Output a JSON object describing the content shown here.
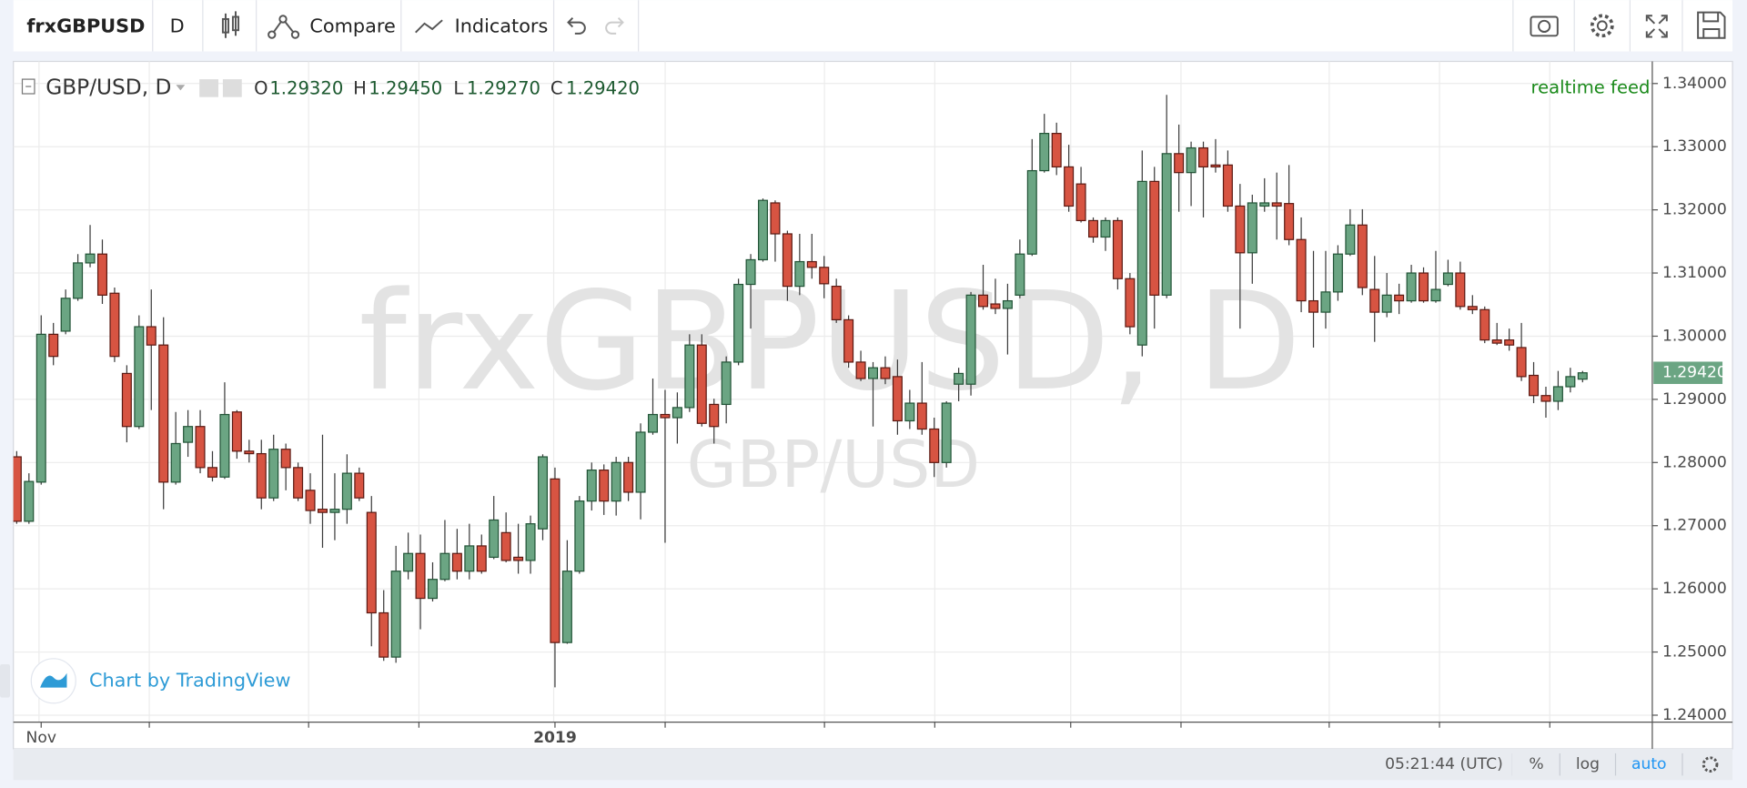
{
  "toolbar": {
    "symbol": "frxGBPUSD",
    "interval": "D",
    "compare": "Compare",
    "indicators": "Indicators"
  },
  "legend": {
    "title": "GBP/USD, D",
    "o_label": "O",
    "open": "1.29320",
    "h_label": "H",
    "high": "1.29450",
    "l_label": "L",
    "low": "1.29270",
    "c_label": "C",
    "close": "1.29420",
    "feed": "realtime feed"
  },
  "watermark": {
    "main": "frxGBPUSD, D",
    "sub": "GBP/USD"
  },
  "attribution": "Chart by TradingView",
  "footer": {
    "time": "05:21:44 (UTC)",
    "percent": "%",
    "log": "log",
    "auto": "auto"
  },
  "chart_data": {
    "type": "candlestick",
    "categories": [
      null,
      null,
      "Nov",
      null,
      null,
      null,
      null,
      null,
      null,
      null,
      null,
      null,
      null,
      null,
      null,
      null,
      null,
      null,
      null,
      null,
      null,
      null,
      null,
      null,
      null,
      null,
      null,
      null,
      null,
      null,
      null,
      null,
      null,
      null,
      null,
      null,
      null,
      null,
      null,
      null,
      null,
      null,
      null,
      null,
      "2019",
      null,
      null,
      null,
      null,
      null,
      null,
      null,
      null,
      null,
      null,
      null,
      null,
      null,
      null,
      null,
      null,
      null,
      null,
      null,
      null,
      null,
      null,
      null,
      null,
      null,
      null,
      null,
      null,
      null,
      null,
      null,
      null,
      null,
      null,
      null,
      null,
      null,
      null,
      null,
      null,
      null,
      null,
      null,
      null,
      null,
      null,
      null,
      null,
      null,
      null,
      null,
      null,
      null,
      null,
      null,
      null,
      null,
      null,
      null,
      null,
      null,
      null,
      null,
      null,
      null,
      null,
      null,
      null,
      null,
      null,
      null,
      null,
      null,
      null,
      null,
      null,
      null,
      null,
      null,
      null,
      null,
      null,
      null,
      null
    ],
    "open": [
      1.2809,
      1.2707,
      1.2769,
      1.3003,
      1.3008,
      1.306,
      1.3116,
      1.313,
      1.3068,
      1.2941,
      1.2857,
      1.3015,
      1.2986,
      1.2769,
      1.2832,
      1.2857,
      1.2792,
      1.2777,
      1.288,
      1.2818,
      1.2814,
      1.2744,
      1.2821,
      1.2792,
      1.2756,
      1.2726,
      1.2721,
      1.2726,
      1.2783,
      1.2721,
      1.2562,
      1.2492,
      1.2628,
      1.2656,
      1.2585,
      1.2615,
      1.2656,
      1.2628,
      1.2668,
      1.265,
      1.2689,
      1.265,
      1.2645,
      1.2695,
      1.2774,
      1.2515,
      1.2628,
      1.2739,
      1.2788,
      1.2739,
      1.28,
      1.2753,
      1.2848,
      1.2876,
      1.2871,
      1.2887,
      1.2986,
      1.2892,
      1.2892,
      1.2959,
      1.3082,
      1.3121,
      1.3211,
      1.3162,
      1.3079,
      1.3118,
      1.3109,
      1.3079,
      1.3026,
      1.2959,
      1.2933,
      1.295,
      1.2936,
      1.2866,
      1.2894,
      1.2853,
      1.28,
      1.2924,
      1.2924,
      1.3065,
      1.3051,
      1.3044,
      1.3065,
      1.313,
      1.3262,
      1.3321,
      1.3268,
      1.3241,
      1.3183,
      1.3157,
      1.3183,
      1.3091,
      1.2986,
      1.3245,
      1.3065,
      1.3289,
      1.3259,
      1.3298,
      1.3271,
      1.3271,
      1.3206,
      1.3132,
      1.3206,
      1.3211,
      1.321,
      1.3153,
      1.3056,
      1.3038,
      1.307,
      1.313,
      1.3176,
      1.3074,
      1.3038,
      1.3065,
      1.3056,
      1.31,
      1.3056,
      1.3082,
      1.31,
      1.3047,
      1.3042,
      1.2994,
      1.2994,
      1.2982,
      1.2938,
      1.2906,
      1.2897,
      1.292,
      1.2932
    ],
    "high": [
      1.2818,
      1.2783,
      1.3033,
      1.3021,
      1.3074,
      1.313,
      1.3176,
      1.3153,
      1.3077,
      1.2954,
      1.3033,
      1.3074,
      1.303,
      1.288,
      1.2883,
      1.2883,
      1.2818,
      1.2927,
      1.2883,
      1.2836,
      1.2836,
      1.2844,
      1.283,
      1.28,
      1.2783,
      1.2844,
      1.2783,
      1.2813,
      1.2792,
      1.2747,
      1.2598,
      1.2668,
      1.2689,
      1.2686,
      1.2642,
      1.2709,
      1.2695,
      1.2703,
      1.2686,
      1.2747,
      1.2721,
      1.2703,
      1.2716,
      1.2813,
      1.2792,
      1.2677,
      1.2747,
      1.28,
      1.2797,
      1.2809,
      1.2809,
      1.2862,
      1.2933,
      1.2915,
      1.2911,
      1.3003,
      1.3003,
      1.2901,
      1.2968,
      1.3091,
      1.313,
      1.3218,
      1.3215,
      1.3167,
      1.3162,
      1.3162,
      1.3127,
      1.3091,
      1.3033,
      1.2977,
      1.2959,
      1.2968,
      1.2963,
      1.2915,
      1.2959,
      1.2871,
      1.2897,
      1.295,
      1.307,
      1.3113,
      1.3091,
      1.3083,
      1.3153,
      1.3312,
      1.3352,
      1.3338,
      1.3303,
      1.3268,
      1.3188,
      1.3188,
      1.3188,
      1.31,
      1.3294,
      1.3268,
      1.3382,
      1.3335,
      1.3308,
      1.3308,
      1.3312,
      1.3294,
      1.3241,
      1.3224,
      1.325,
      1.3259,
      1.3271,
      1.3188,
      1.3135,
      1.3135,
      1.3144,
      1.3201,
      1.3201,
      1.3127,
      1.31,
      1.3083,
      1.3113,
      1.3109,
      1.3135,
      1.3121,
      1.3118,
      1.3065,
      1.3047,
      1.3021,
      1.3012,
      1.3021,
      1.2959,
      1.292,
      1.2945,
      1.295,
      1.2945
    ],
    "low": [
      1.2703,
      1.2703,
      1.2765,
      1.2954,
      1.3003,
      1.3056,
      1.3109,
      1.3051,
      1.2959,
      1.2832,
      1.2853,
      1.2883,
      1.2726,
      1.2765,
      1.2809,
      1.2783,
      1.277,
      1.2774,
      1.2806,
      1.28,
      1.2726,
      1.2739,
      1.2756,
      1.2739,
      1.2703,
      1.2665,
      1.2677,
      1.2703,
      1.2739,
      1.2509,
      1.2486,
      1.2483,
      1.2615,
      1.2536,
      1.258,
      1.2612,
      1.2615,
      1.2615,
      1.2624,
      1.2647,
      1.2642,
      1.2624,
      1.2624,
      1.2677,
      1.2444,
      1.2513,
      1.2624,
      1.2724,
      1.2717,
      1.2716,
      1.2739,
      1.271,
      1.2844,
      1.2673,
      1.283,
      1.288,
      1.2857,
      1.283,
      1.2862,
      1.2954,
      1.3012,
      1.3118,
      1.3118,
      1.3056,
      1.3065,
      1.3091,
      1.306,
      1.3021,
      1.295,
      1.2929,
      1.2857,
      1.2924,
      1.2844,
      1.2853,
      1.2844,
      1.2777,
      1.2792,
      1.2897,
      1.2906,
      1.3042,
      1.3035,
      1.2971,
      1.306,
      1.3127,
      1.3259,
      1.3255,
      1.3197,
      1.318,
      1.3148,
      1.3135,
      1.3074,
      1.3003,
      1.2968,
      1.3012,
      1.306,
      1.3197,
      1.3206,
      1.3188,
      1.3259,
      1.3197,
      1.3012,
      1.3083,
      1.3197,
      1.3153,
      1.3144,
      1.3038,
      1.2982,
      1.3012,
      1.3056,
      1.3127,
      1.3065,
      1.2991,
      1.303,
      1.3035,
      1.3053,
      1.3053,
      1.3053,
      1.3079,
      1.3042,
      1.3035,
      1.2989,
      1.2986,
      1.2977,
      1.2929,
      1.2894,
      1.2871,
      1.2883,
      1.2911,
      1.2927
    ],
    "close": [
      1.2707,
      1.277,
      1.3003,
      1.2968,
      1.306,
      1.3116,
      1.313,
      1.3065,
      1.2968,
      1.2857,
      1.3015,
      1.2986,
      1.2769,
      1.283,
      1.2857,
      1.2792,
      1.2777,
      1.2876,
      1.2818,
      1.2814,
      1.2744,
      1.2821,
      1.2792,
      1.2744,
      1.2724,
      1.2721,
      1.2726,
      1.2783,
      1.2744,
      1.2562,
      1.2492,
      1.2628,
      1.2656,
      1.2585,
      1.2615,
      1.2656,
      1.2628,
      1.2668,
      1.2628,
      1.2709,
      1.2645,
      1.2645,
      1.2703,
      1.2809,
      1.2515,
      1.2628,
      1.2739,
      1.2788,
      1.2739,
      1.28,
      1.2753,
      1.2848,
      1.2876,
      1.2871,
      1.2887,
      1.2986,
      1.2862,
      1.2857,
      1.2959,
      1.3082,
      1.3121,
      1.3215,
      1.3162,
      1.3079,
      1.3118,
      1.3109,
      1.3083,
      1.3026,
      1.2959,
      1.2933,
      1.295,
      1.2933,
      1.2866,
      1.2894,
      1.2853,
      1.28,
      1.2894,
      1.2941,
      1.3065,
      1.3047,
      1.3044,
      1.3056,
      1.313,
      1.3262,
      1.3321,
      1.3268,
      1.3206,
      1.3183,
      1.3157,
      1.3183,
      1.3091,
      1.3015,
      1.3245,
      1.3065,
      1.3289,
      1.3259,
      1.3298,
      1.3268,
      1.3268,
      1.3206,
      1.3132,
      1.3211,
      1.3211,
      1.3206,
      1.3153,
      1.3056,
      1.3038,
      1.307,
      1.313,
      1.3176,
      1.3077,
      1.3038,
      1.3065,
      1.3056,
      1.31,
      1.3056,
      1.3074,
      1.31,
      1.3047,
      1.3042,
      1.2994,
      1.2989,
      1.2986,
      1.2936,
      1.2906,
      1.2897,
      1.292,
      1.2936,
      1.2942
    ],
    "ylim": [
      1.2389,
      1.3435
    ],
    "yticks": [
      {
        "value": 1.24,
        "label": "1.24000"
      },
      {
        "value": 1.25,
        "label": "1.25000"
      },
      {
        "value": 1.26,
        "label": "1.26000"
      },
      {
        "value": 1.27,
        "label": "1.27000"
      },
      {
        "value": 1.28,
        "label": "1.28000"
      },
      {
        "value": 1.29,
        "label": "1.29000"
      },
      {
        "value": 1.3,
        "label": "1.30000"
      },
      {
        "value": 1.31,
        "label": "1.31000"
      },
      {
        "value": 1.32,
        "label": "1.32000"
      },
      {
        "value": 1.33,
        "label": "1.33000"
      },
      {
        "value": 1.34,
        "label": "1.34000"
      }
    ],
    "last_price": {
      "value": 1.2942,
      "label": "1.29420"
    },
    "grid": true,
    "log_scale": false,
    "up_color": "#6ba583",
    "down_color": "#d75442",
    "wick_color": "#3a3a3a"
  }
}
